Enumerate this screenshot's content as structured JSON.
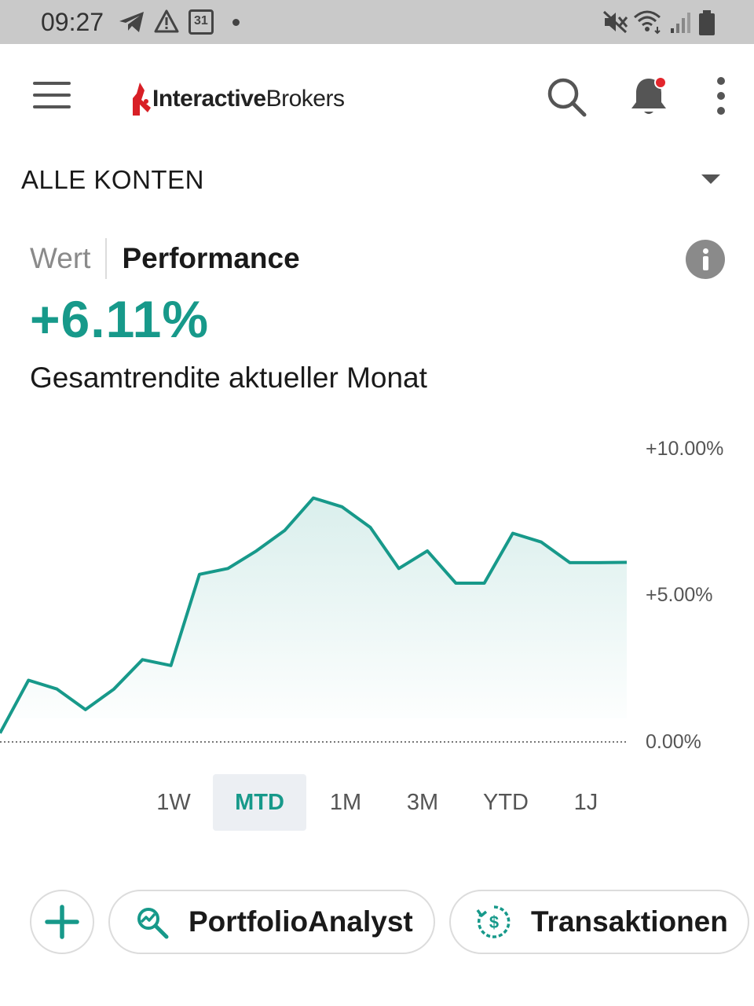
{
  "status_bar": {
    "time": "09:27",
    "icons": [
      "telegram-icon",
      "warning-icon",
      "calendar-icon",
      "dot-icon",
      "mute-icon",
      "wifi-icon",
      "signal-icon",
      "battery-icon"
    ],
    "calendar_day": "31"
  },
  "app_bar": {
    "logo_bold": "Interactive",
    "logo_regular": "Brokers",
    "brand_color": "#d81f26",
    "icons": [
      "menu-icon",
      "search-icon",
      "bell-icon",
      "more-vert-icon"
    ]
  },
  "account": {
    "label": "ALLE KONTEN"
  },
  "tabs": {
    "value_label": "Wert",
    "performance_label": "Performance",
    "selected": "Performance"
  },
  "summary": {
    "value": "+6.11%",
    "caption": "Gesamtrendite aktueller Monat",
    "accent_color": "#17998a"
  },
  "chart_data": {
    "type": "area",
    "y_tick_labels": [
      "+10.00%",
      "+5.00%",
      "0.00%"
    ],
    "ylim": [
      0,
      10
    ],
    "grid": false,
    "baseline_style": "dotted",
    "x": [
      1,
      2,
      3,
      4,
      5,
      6,
      7,
      8,
      9,
      10,
      11,
      12,
      13,
      14,
      15,
      16,
      17,
      18,
      19,
      20,
      21,
      22,
      23
    ],
    "series": [
      {
        "values": [
          0.3,
          2.1,
          1.8,
          1.1,
          1.8,
          2.8,
          2.6,
          5.7,
          5.9,
          6.5,
          7.2,
          8.3,
          8.0,
          7.3,
          5.9,
          6.5,
          5.4,
          5.4,
          7.1,
          6.8,
          6.1,
          6.1,
          6.11
        ]
      }
    ]
  },
  "ranges": {
    "options": [
      "1W",
      "MTD",
      "1M",
      "3M",
      "YTD",
      "1J"
    ],
    "selected": "MTD"
  },
  "actions": {
    "add_icon": "plus-icon",
    "portfolio_analyst_label": "PortfolioAnalyst",
    "portfolio_analyst_icon": "analytics-search-icon",
    "transactions_label": "Transaktionen",
    "transactions_icon": "dollar-cycle-icon"
  }
}
